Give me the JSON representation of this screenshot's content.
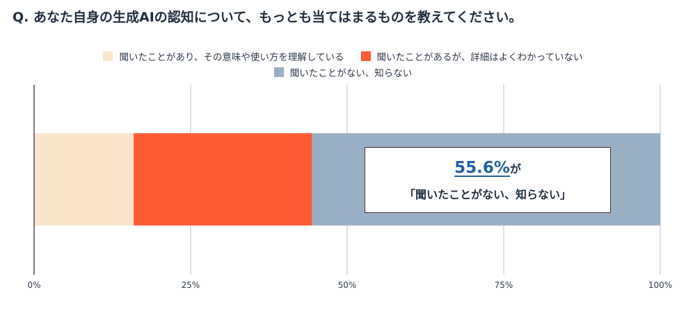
{
  "question": "Q. あなた自身の生成AIの認知について、もっとも当てはまるものを教えてください。",
  "chart_data": {
    "type": "bar",
    "orientation": "horizontal",
    "stacked": true,
    "xlim": [
      0,
      100
    ],
    "ticks": [
      0,
      25,
      50,
      75,
      100
    ],
    "tick_labels": [
      "0%",
      "25%",
      "50%",
      "75%",
      "100%"
    ],
    "grid": true,
    "legend_position": "top-center",
    "series": [
      {
        "name": "聞いたことがあり、その意味や使い方を理解している",
        "value": 15.9,
        "color": "#fae5cc"
      },
      {
        "name": "聞いたことがあるが、詳細はよくわかっていない",
        "value": 28.5,
        "color": "#ff5c35"
      },
      {
        "name": "聞いたことがない、知らない",
        "value": 55.6,
        "color": "#99afc4"
      }
    ],
    "annotation": {
      "value": "55.6%",
      "suffix": "が",
      "text": "「聞いたことがない、知らない」"
    }
  }
}
